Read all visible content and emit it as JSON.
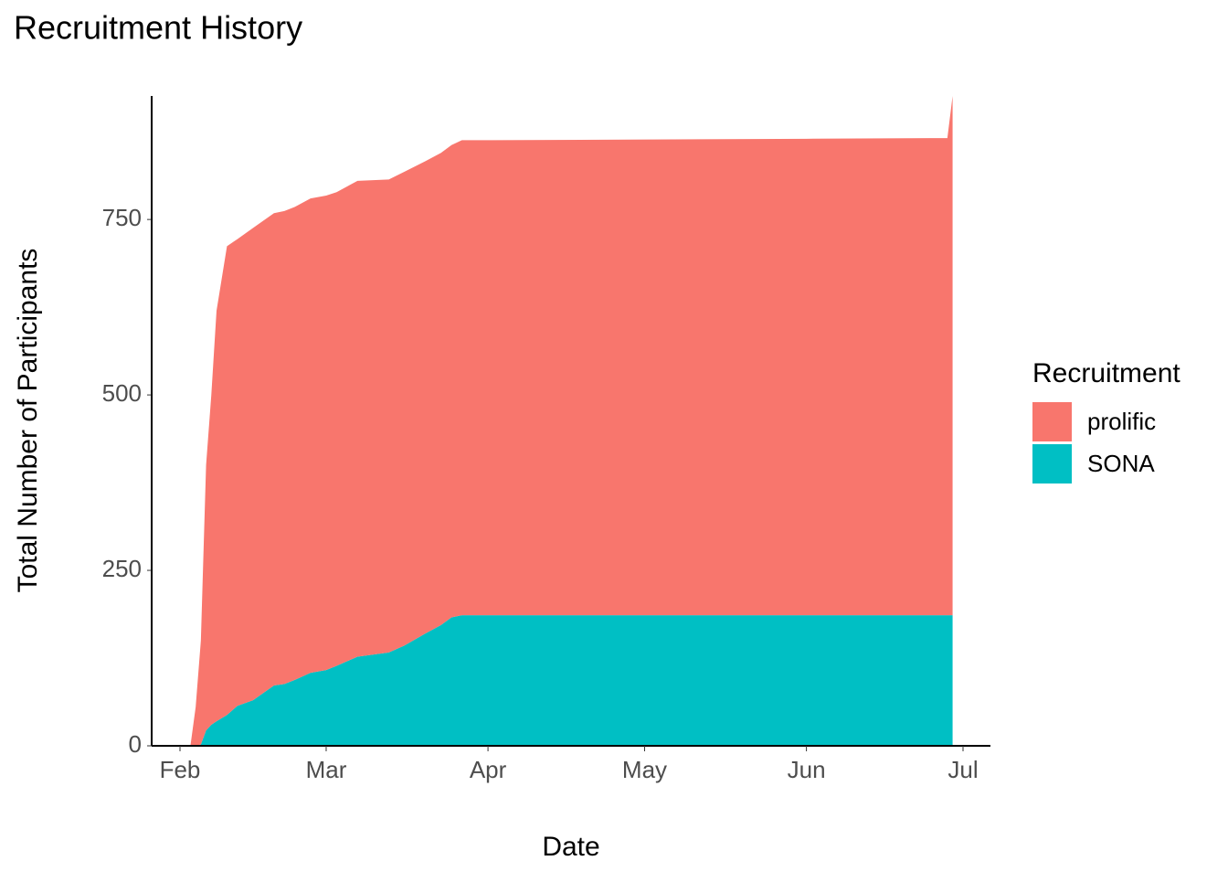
{
  "chart_data": {
    "type": "stacked-area",
    "title": "Recruitment History",
    "x_label": "Date",
    "y_label": "Total Number of Participants",
    "legend_title": "Recruitment",
    "legend": "right",
    "grid": false,
    "x": [
      2,
      3,
      4,
      5,
      6,
      7,
      9,
      11,
      14,
      18,
      20,
      22,
      25,
      28,
      30,
      34,
      40,
      43,
      47,
      50,
      52,
      54,
      60,
      90,
      120,
      147,
      148
    ],
    "series": [
      {
        "name": "prolific",
        "color": "#F8766D",
        "values": [
          0,
          55,
          148,
          378,
          470,
          585,
          668,
          665,
          673,
          673,
          674,
          674,
          676,
          676,
          675,
          678,
          674,
          675,
          673,
          673,
          673,
          677,
          677,
          678,
          679,
          680,
          740
        ]
      },
      {
        "name": "SONA",
        "color": "#00BFC4",
        "values": [
          0,
          0,
          2,
          22,
          30,
          35,
          44,
          57,
          65,
          86,
          88,
          94,
          104,
          108,
          114,
          127,
          133,
          143,
          160,
          172,
          183,
          186,
          186,
          186,
          186,
          186,
          186
        ]
      }
    ],
    "xlim": [
      -5.25,
      155.25
    ],
    "xticks": [
      {
        "value": 0,
        "label": "Feb"
      },
      {
        "value": 28,
        "label": "Mar"
      },
      {
        "value": 59,
        "label": "Apr"
      },
      {
        "value": 89,
        "label": "May"
      },
      {
        "value": 120,
        "label": "Jun"
      },
      {
        "value": 150,
        "label": "Jul"
      }
    ],
    "ylim": [
      0,
      926
    ],
    "yticks": [
      0,
      250,
      500,
      750
    ]
  }
}
